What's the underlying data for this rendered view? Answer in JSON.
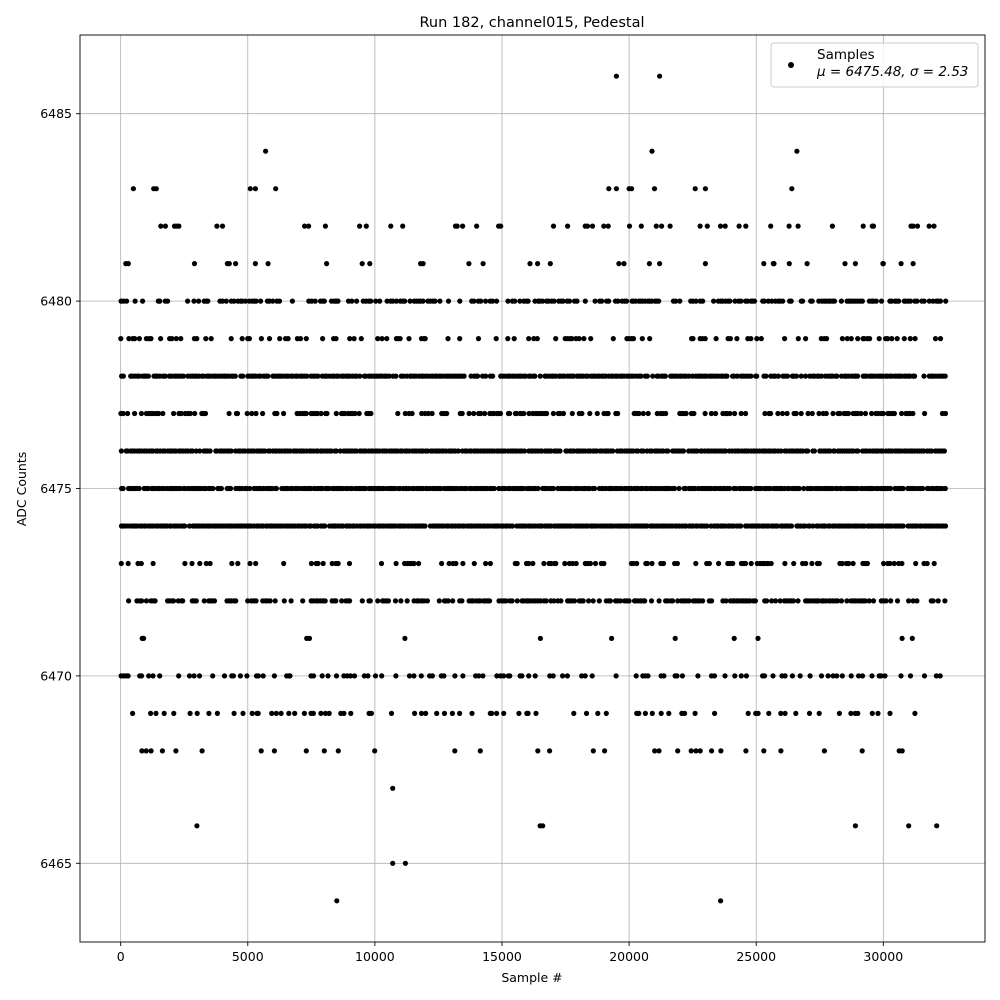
{
  "chart_data": {
    "type": "scatter",
    "title": "Run 182, channel015, Pedestal",
    "xlabel": "Sample #",
    "ylabel": "ADC Counts",
    "xlim": [
      -1600,
      34000
    ],
    "ylim": [
      6462.9,
      6487.1
    ],
    "xticks": [
      0,
      5000,
      10000,
      15000,
      20000,
      25000,
      30000
    ],
    "yticks": [
      6465,
      6470,
      6475,
      6480,
      6485
    ],
    "grid": true,
    "marker_color": "#000000",
    "legend": {
      "placement": "top-right",
      "label": "Samples",
      "stats": "μ = 6475.48, σ = 2.53"
    },
    "x_range": [
      0,
      32400
    ],
    "series": [
      {
        "name": "Samples",
        "dense_levels": [
          {
            "y": 6480,
            "density": 0.55
          },
          {
            "y": 6478,
            "density": 0.85
          },
          {
            "y": 6476,
            "density": 0.95
          },
          {
            "y": 6475,
            "density": 0.95
          },
          {
            "y": 6474,
            "density": 0.97
          },
          {
            "y": 6472,
            "density": 0.6
          },
          {
            "y": 6479,
            "density": 0.3
          },
          {
            "y": 6477,
            "density": 0.45
          },
          {
            "y": 6473,
            "density": 0.3
          },
          {
            "y": 6470,
            "density": 0.25
          },
          {
            "y": 6469,
            "density": 0.18
          },
          {
            "y": 6482,
            "density": 0.12
          },
          {
            "y": 6468,
            "density": 0.09
          },
          {
            "y": 6471,
            "density": 0.05
          },
          {
            "y": 6481,
            "density": 0.03
          }
        ],
        "points": [
          {
            "x": 500,
            "y": 6483
          },
          {
            "x": 1300,
            "y": 6483
          },
          {
            "x": 1400,
            "y": 6483
          },
          {
            "x": 5100,
            "y": 6483
          },
          {
            "x": 5300,
            "y": 6483
          },
          {
            "x": 6100,
            "y": 6483
          },
          {
            "x": 19200,
            "y": 6483
          },
          {
            "x": 19500,
            "y": 6483
          },
          {
            "x": 20000,
            "y": 6483
          },
          {
            "x": 20100,
            "y": 6483
          },
          {
            "x": 21000,
            "y": 6483
          },
          {
            "x": 22600,
            "y": 6483
          },
          {
            "x": 23000,
            "y": 6483
          },
          {
            "x": 26400,
            "y": 6483
          },
          {
            "x": 5700,
            "y": 6484
          },
          {
            "x": 20900,
            "y": 6484
          },
          {
            "x": 26600,
            "y": 6484
          },
          {
            "x": 19500,
            "y": 6486
          },
          {
            "x": 21200,
            "y": 6486
          },
          {
            "x": 10700,
            "y": 6467
          },
          {
            "x": 3000,
            "y": 6466
          },
          {
            "x": 16500,
            "y": 6466
          },
          {
            "x": 16600,
            "y": 6466
          },
          {
            "x": 28900,
            "y": 6466
          },
          {
            "x": 31000,
            "y": 6466
          },
          {
            "x": 32100,
            "y": 6466
          },
          {
            "x": 10700,
            "y": 6465
          },
          {
            "x": 11200,
            "y": 6465
          },
          {
            "x": 8500,
            "y": 6464
          },
          {
            "x": 23600,
            "y": 6464
          },
          {
            "x": 200,
            "y": 6481
          },
          {
            "x": 300,
            "y": 6481
          },
          {
            "x": 4200,
            "y": 6481
          },
          {
            "x": 5300,
            "y": 6481
          },
          {
            "x": 8100,
            "y": 6481
          },
          {
            "x": 9500,
            "y": 6481
          },
          {
            "x": 9800,
            "y": 6481
          },
          {
            "x": 11800,
            "y": 6481
          },
          {
            "x": 13700,
            "y": 6481
          },
          {
            "x": 16100,
            "y": 6481
          },
          {
            "x": 16400,
            "y": 6481
          },
          {
            "x": 16900,
            "y": 6481
          },
          {
            "x": 19600,
            "y": 6481
          },
          {
            "x": 19800,
            "y": 6481
          },
          {
            "x": 20800,
            "y": 6481
          },
          {
            "x": 21200,
            "y": 6481
          },
          {
            "x": 23000,
            "y": 6481
          },
          {
            "x": 25300,
            "y": 6481
          },
          {
            "x": 25700,
            "y": 6481
          },
          {
            "x": 26300,
            "y": 6481
          },
          {
            "x": 27000,
            "y": 6481
          },
          {
            "x": 28900,
            "y": 6481
          },
          {
            "x": 30000,
            "y": 6481
          },
          {
            "x": 30700,
            "y": 6481
          }
        ]
      }
    ]
  }
}
